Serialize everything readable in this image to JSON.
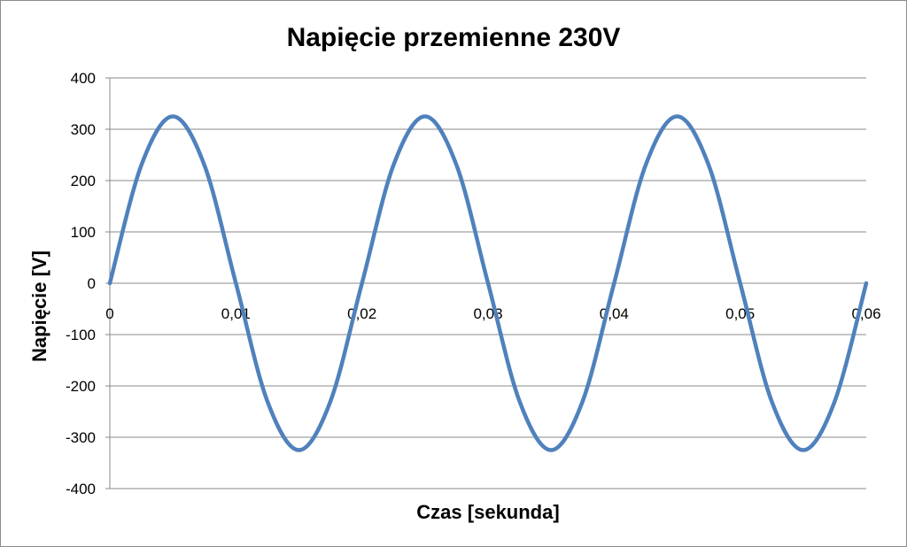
{
  "chart_data": {
    "type": "line",
    "title": "Napięcie przemienne 230V",
    "xlabel": "Czas [sekunda]",
    "ylabel": "Napięcie [V]",
    "xlim": [
      0,
      0.06
    ],
    "ylim": [
      -400,
      400
    ],
    "x_ticks": [
      0,
      0.01,
      0.02,
      0.03,
      0.04,
      0.05,
      0.06
    ],
    "x_tick_labels": [
      "0",
      "0,01",
      "0,02",
      "0,03",
      "0,04",
      "0,05",
      "0,06"
    ],
    "y_ticks": [
      400,
      300,
      200,
      100,
      0,
      -100,
      -200,
      -300,
      -400
    ],
    "y_tick_labels": [
      "400",
      "300",
      "200",
      "100",
      "0",
      "-100",
      "-200",
      "-300",
      "-400"
    ],
    "grid": true,
    "legend": "none",
    "series": [
      {
        "color": "#4F81BD",
        "x": [
          0,
          0.0025,
          0.005,
          0.0075,
          0.01,
          0.0125,
          0.015,
          0.0175,
          0.02,
          0.0225,
          0.025,
          0.0275,
          0.03,
          0.0325,
          0.035,
          0.0375,
          0.04,
          0.0425,
          0.045,
          0.0475,
          0.05,
          0.0525,
          0.055,
          0.0575,
          0.06
        ],
        "y": [
          0,
          230,
          325,
          230,
          0,
          -230,
          -325,
          -230,
          0,
          230,
          325,
          230,
          0,
          -230,
          -325,
          -230,
          0,
          230,
          325,
          230,
          0,
          -230,
          -325,
          -230,
          0
        ]
      }
    ]
  }
}
